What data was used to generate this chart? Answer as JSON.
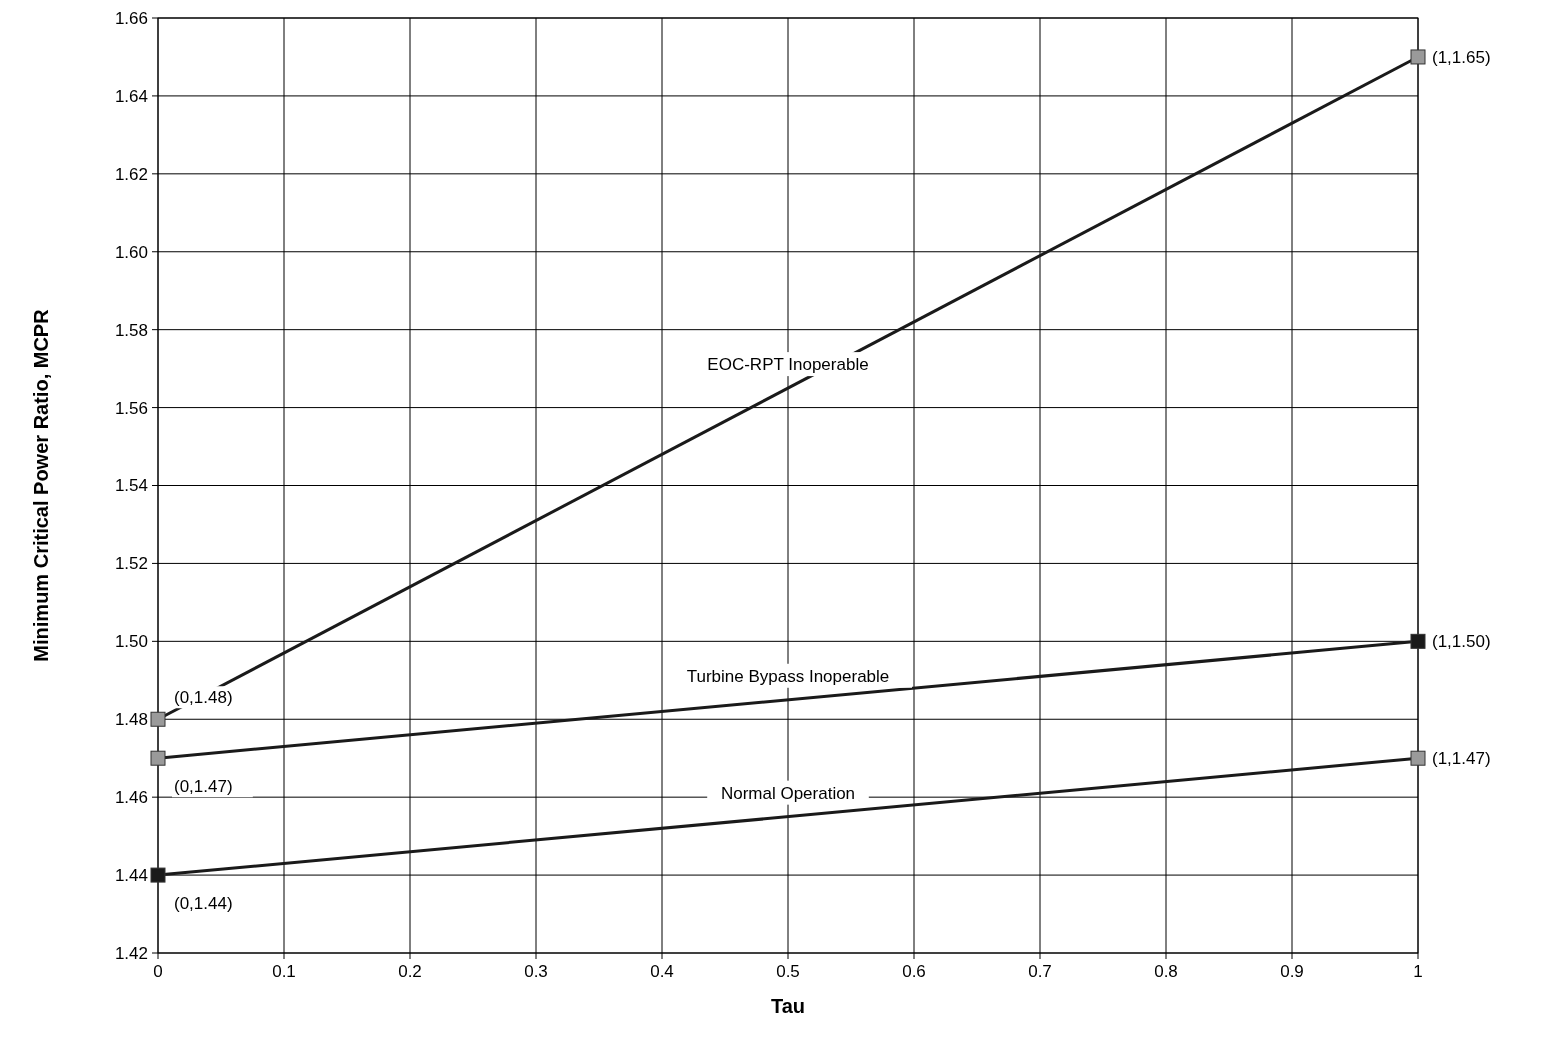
{
  "chart_data": {
    "type": "line",
    "xlabel": "Tau",
    "ylabel": "Minimum Critical Power Ratio, MCPR",
    "x": [
      0,
      1
    ],
    "series": [
      {
        "name": "EOC-RPT Inoperable",
        "color": "#1a1a1a",
        "colors": [
          "#9a9a9a",
          "#9a9a9a"
        ],
        "values": [
          1.48,
          1.65
        ],
        "value_labels": [
          "(0,1.48)",
          "(1,1.65)"
        ]
      },
      {
        "name": "Turbine Bypass Inoperable",
        "color": "#1a1a1a",
        "colors": [
          "#9a9a9a",
          "#1a1a1a"
        ],
        "values": [
          1.47,
          1.5
        ],
        "value_labels": [
          "(0,1.47)",
          "(1,1.50)"
        ]
      },
      {
        "name": "Normal Operation",
        "color": "#1a1a1a",
        "colors": [
          "#1a1a1a",
          "#9a9a9a"
        ],
        "values": [
          1.44,
          1.47
        ],
        "value_labels": [
          "(0,1.44)",
          "(1,1.47)"
        ]
      }
    ],
    "marker": "square",
    "line_style": "solid",
    "grid": true,
    "xlim": [
      0,
      1
    ],
    "xticks": [
      0,
      0.1,
      0.2,
      0.3,
      0.4,
      0.5,
      0.6,
      0.7,
      0.8,
      0.9,
      1
    ],
    "ylim": [
      1.42,
      1.66
    ],
    "yticks": [
      1.42,
      1.44,
      1.46,
      1.48,
      {
        "value": 1.5,
        "label": "1.50"
      },
      1.52,
      1.54,
      1.56,
      1.58,
      {
        "value": 1.6,
        "label": "1.60"
      },
      1.62,
      1.64,
      1.66
    ]
  }
}
